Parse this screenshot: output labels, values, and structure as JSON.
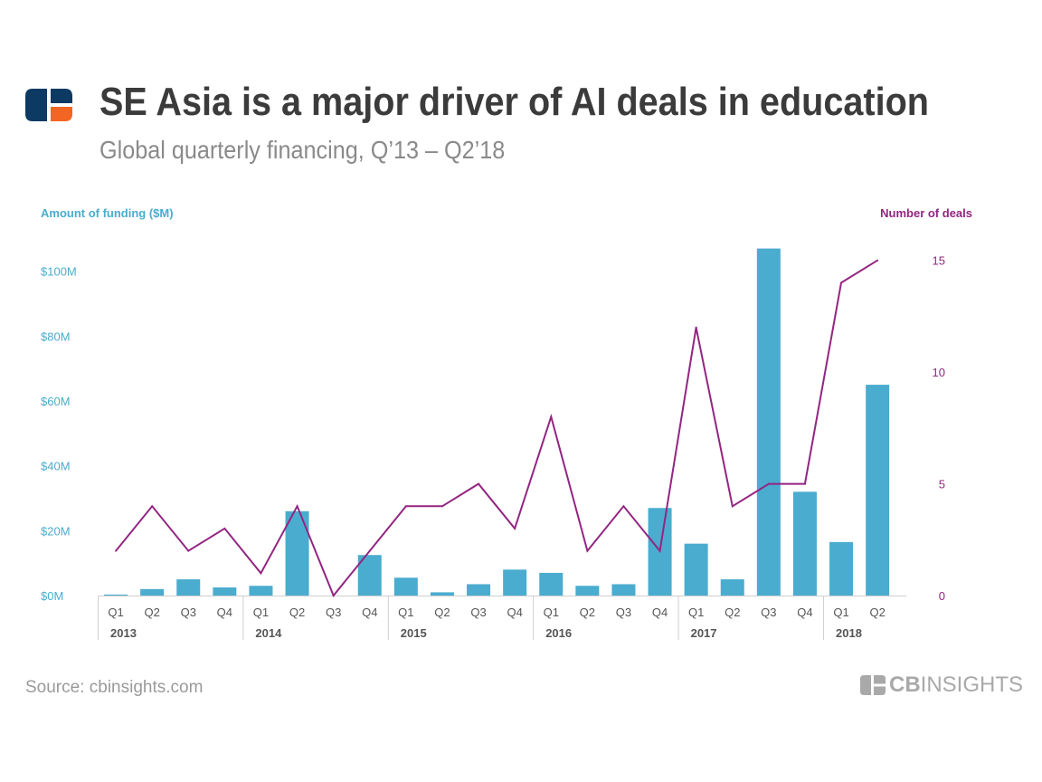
{
  "header": {
    "title": "SE Asia is a major driver of AI deals in education",
    "subtitle": "Global quarterly financing, Q’13 – Q2’18"
  },
  "footer": {
    "source": "Source: cbinsights.com",
    "logo_bold": "CB",
    "logo_light": "INSIGHTS"
  },
  "colors": {
    "bar": "#4aaccf",
    "line": "#932582",
    "logo_dark": "#0d3a63",
    "logo_accent": "#f26522",
    "text_dark": "#3b3b3b"
  },
  "chart_data": {
    "type": "bar+line",
    "title": "SE Asia is a major driver of AI deals in education",
    "subtitle": "Global quarterly financing, Q’13 – Q2’18",
    "ylabel_left": "Amount of funding ($M)",
    "ylabel_right": "Number of deals",
    "categories": [
      "Q1",
      "Q2",
      "Q3",
      "Q4",
      "Q1",
      "Q2",
      "Q3",
      "Q4",
      "Q1",
      "Q2",
      "Q3",
      "Q4",
      "Q1",
      "Q2",
      "Q3",
      "Q4",
      "Q1",
      "Q2",
      "Q3",
      "Q4",
      "Q1",
      "Q2"
    ],
    "years": [
      {
        "label": "2013",
        "start": 0,
        "count": 4
      },
      {
        "label": "2014",
        "start": 4,
        "count": 4
      },
      {
        "label": "2015",
        "start": 8,
        "count": 4
      },
      {
        "label": "2016",
        "start": 12,
        "count": 4
      },
      {
        "label": "2017",
        "start": 16,
        "count": 4
      },
      {
        "label": "2018",
        "start": 20,
        "count": 2
      }
    ],
    "left_axis": {
      "ylim": [
        0,
        108
      ],
      "ticks": [
        0,
        20,
        40,
        60,
        80,
        100
      ],
      "tick_labels": [
        "$0M",
        "$20M",
        "$40M",
        "$60M",
        "$80M",
        "$100M"
      ]
    },
    "right_axis": {
      "ylim": [
        0,
        15.8
      ],
      "ticks": [
        0,
        5,
        10,
        15
      ],
      "tick_labels": [
        "0",
        "5",
        "10",
        "15"
      ]
    },
    "series": [
      {
        "name": "Amount of funding ($M)",
        "type": "bar",
        "axis": "left",
        "values": [
          0.3,
          2,
          5,
          2.5,
          3,
          26,
          0,
          12.5,
          5.5,
          1,
          3.5,
          8,
          7,
          3,
          3.5,
          27,
          16,
          5,
          107,
          32,
          16.5,
          65
        ]
      },
      {
        "name": "Number of deals",
        "type": "line",
        "axis": "right",
        "values": [
          2,
          4,
          2,
          3,
          1,
          4,
          0,
          2,
          4,
          4,
          5,
          3,
          8,
          2,
          4,
          2,
          12,
          4,
          5,
          5,
          14,
          15
        ]
      }
    ],
    "grid": false
  }
}
